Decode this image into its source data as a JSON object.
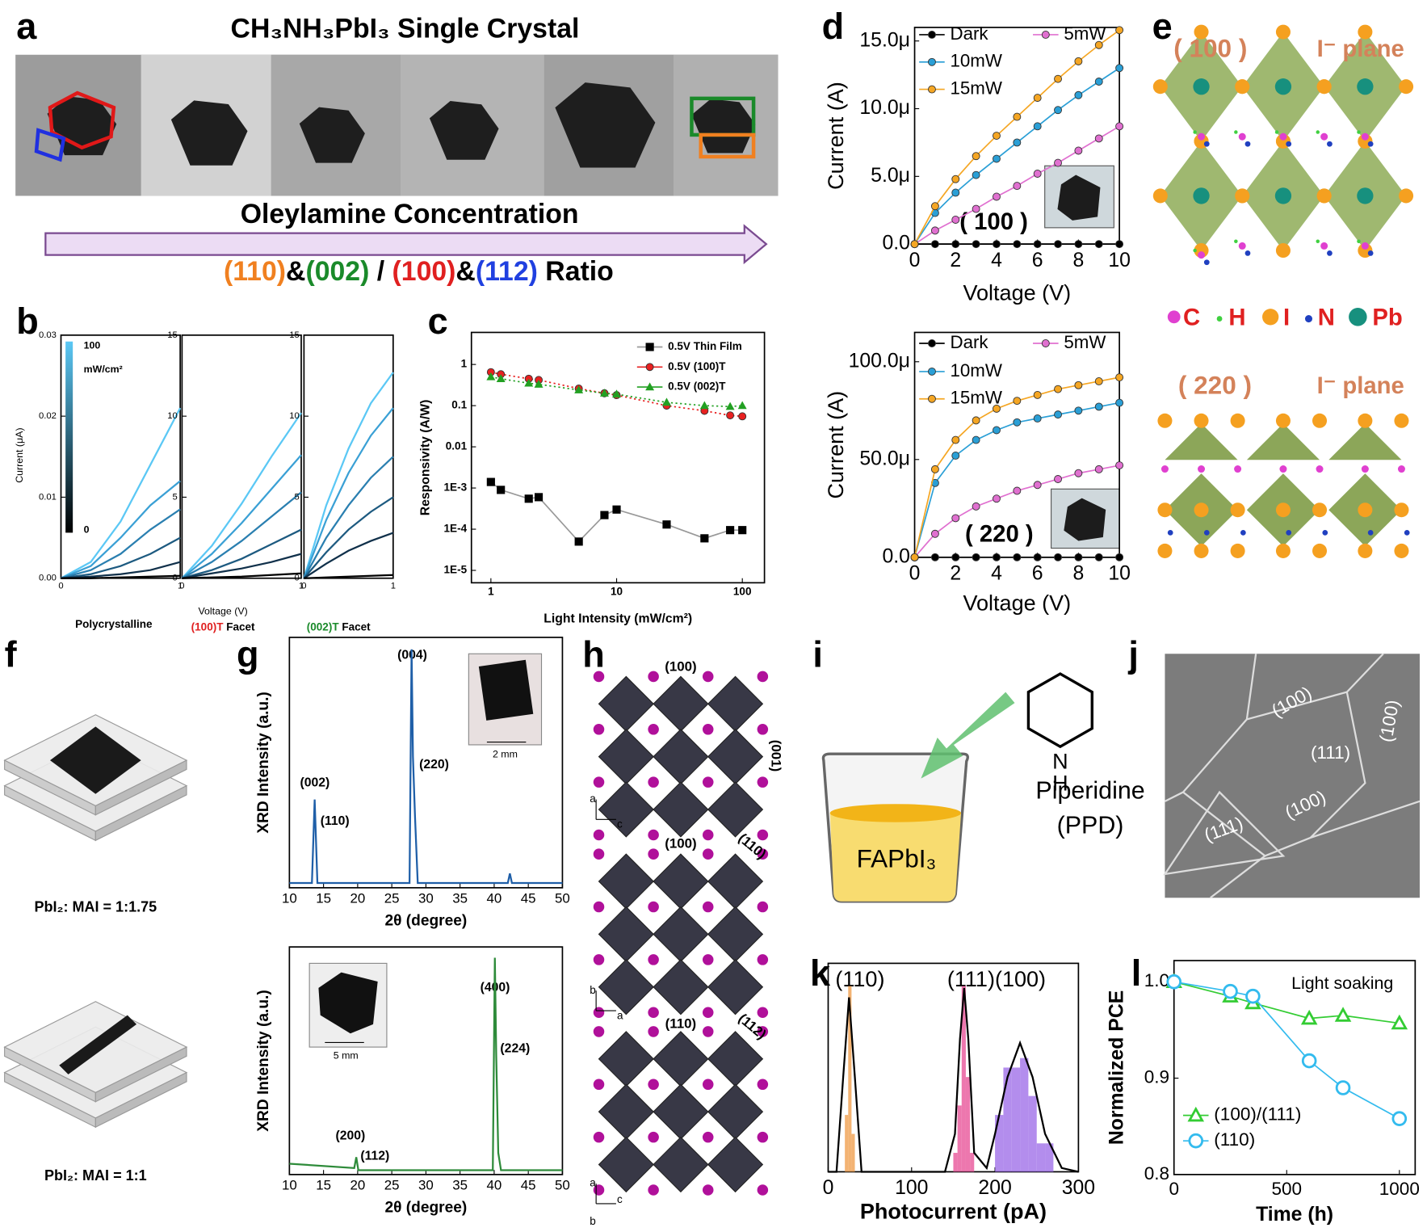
{
  "panel_labels": [
    "a",
    "b",
    "c",
    "d",
    "e",
    "f",
    "g",
    "h",
    "i",
    "j",
    "k",
    "l"
  ],
  "a": {
    "title": "CH₃NH₃PbI₃ Single Crystal",
    "axis": "Oleylamine Concentration",
    "ratio": [
      "(110)",
      "&",
      "(002)",
      " / ",
      "(100)",
      "&",
      "(112)",
      " Ratio"
    ]
  },
  "b": {
    "ylabel": "Current (μA)",
    "xlabel": "Voltage (V)",
    "poly": "Polycrystalline",
    "facets": [
      {
        "name": "(100)T",
        "word": " Facet"
      },
      {
        "name": "(002)T",
        "word": " Facet"
      }
    ],
    "colorbar": {
      "max": 100,
      "unit": "mW/cm²",
      "min": 0
    }
  },
  "d": {
    "facets": [
      "( 100 )",
      "( 220 )"
    ]
  },
  "e": {
    "facets": [
      "( 100 )",
      "( 220 )"
    ],
    "plane": "I⁻ plane",
    "legend": [
      "C",
      "H",
      "I",
      "N",
      "Pb"
    ]
  },
  "f": {
    "ratios": [
      "PbI₂: MAI = 1:1.75",
      "PbI₂: MAI = 1:1"
    ]
  },
  "g": {
    "peaks_top": [
      "(002)",
      "(110)",
      "(004)",
      "(220)"
    ],
    "peaks_bottom": [
      "(200)",
      "(112)",
      "(400)",
      "(224)"
    ],
    "scale_bars": [
      "2 mm",
      "5 mm"
    ]
  },
  "h": {
    "labels": [
      "(100)",
      "(001)",
      "(100)",
      "(110)",
      "(110)",
      "(112)"
    ],
    "axes": [
      [
        "a",
        "c"
      ],
      [
        "b",
        "a"
      ],
      [
        "a",
        "b",
        "c"
      ]
    ]
  },
  "i": {
    "solution": "FAPbI₃",
    "amine": "Piperidine",
    "abbr": "(PPD)",
    "atom": "N",
    "hydrogen": "H"
  },
  "j": {
    "facets": [
      "(100)",
      "(100)",
      "(111)",
      "(100)",
      "(111)"
    ]
  },
  "k": {
    "peaks": [
      "(110)",
      "(111)(100)"
    ]
  },
  "l": {
    "note": "Light soaking"
  },
  "charts": {
    "b1": {
      "type": "line",
      "xlim": [
        0,
        1
      ],
      "ylim": [
        0,
        0.03
      ],
      "xticks": [
        0,
        1
      ],
      "yticks": [
        {
          "value": 0,
          "label": "0.00"
        },
        0.01,
        0.02,
        0.03
      ],
      "x": [
        0,
        0.25,
        0.5,
        0.75,
        1
      ],
      "series": [
        {
          "color": "#5bc8f5",
          "values": [
            0,
            0.002,
            0.007,
            0.014,
            0.021
          ]
        },
        {
          "color": "#3aa0d5",
          "values": [
            0,
            0.0015,
            0.005,
            0.009,
            0.012
          ]
        },
        {
          "color": "#2a7fb0",
          "values": [
            0,
            0.001,
            0.003,
            0.006,
            0.0085
          ]
        },
        {
          "color": "#1d5a80",
          "values": [
            0,
            0.0005,
            0.0015,
            0.003,
            0.005
          ]
        },
        {
          "color": "#10304a",
          "values": [
            0,
            0.0002,
            0.0005,
            0.001,
            0.002
          ]
        },
        {
          "color": "#000000",
          "values": [
            0,
            0,
            0.0001,
            0.0002,
            0.0003
          ]
        }
      ]
    },
    "b2": {
      "type": "line",
      "xlim": [
        0,
        1
      ],
      "ylim": [
        0,
        15
      ],
      "xticks": [
        0,
        1
      ],
      "yticks": [
        0,
        5,
        10,
        15
      ],
      "x": [
        0,
        0.25,
        0.5,
        0.75,
        1
      ],
      "series": [
        {
          "color": "#5bc8f5",
          "values": [
            0,
            2,
            4.6,
            7.5,
            10.2
          ]
        },
        {
          "color": "#3aa0d5",
          "values": [
            0,
            1.5,
            3.4,
            5.5,
            7.6
          ]
        },
        {
          "color": "#2a7fb0",
          "values": [
            0,
            1,
            2.3,
            3.8,
            5.3
          ]
        },
        {
          "color": "#1d5a80",
          "values": [
            0,
            0.5,
            1.2,
            2.1,
            3
          ]
        },
        {
          "color": "#10304a",
          "values": [
            0,
            0.3,
            0.6,
            1,
            1.5
          ]
        },
        {
          "color": "#000000",
          "values": [
            0,
            0.05,
            0.1,
            0.2,
            0.3
          ]
        }
      ]
    },
    "b3": {
      "type": "line",
      "xlim": [
        0,
        1
      ],
      "ylim": [
        0,
        15
      ],
      "xticks": [
        0,
        1
      ],
      "yticks": [
        0,
        5,
        10,
        15
      ],
      "x": [
        0,
        0.25,
        0.5,
        0.75,
        1
      ],
      "series": [
        {
          "color": "#5bc8f5",
          "values": [
            0,
            4.5,
            8,
            10.8,
            12.7
          ]
        },
        {
          "color": "#3aa0d5",
          "values": [
            0,
            3.6,
            6.5,
            8.8,
            10.5
          ]
        },
        {
          "color": "#2a7fb0",
          "values": [
            0,
            2.5,
            4.5,
            6.2,
            7.5
          ]
        },
        {
          "color": "#1d5a80",
          "values": [
            0,
            1.6,
            3,
            4.1,
            5
          ]
        },
        {
          "color": "#10304a",
          "values": [
            0,
            0.9,
            1.7,
            2.3,
            2.8
          ]
        },
        {
          "color": "#000000",
          "values": [
            0,
            0.05,
            0.1,
            0.15,
            0.2
          ]
        }
      ]
    },
    "c": {
      "type": "scatter",
      "xlabel": "Light Intensity (mW/cm²)",
      "ylabel": "Responsivity (A/W)",
      "log_x": true,
      "log_y": true,
      "xlim": [
        0.7,
        150
      ],
      "ylim": [
        5e-06,
        6
      ],
      "xticks": [
        1,
        10,
        100
      ],
      "yticks": [
        {
          "value": 1e-05,
          "label": "1E-5"
        },
        {
          "value": 0.0001,
          "label": "1E-4"
        },
        {
          "value": 0.001,
          "label": "1E-3"
        },
        0.01,
        0.1,
        1
      ],
      "x": [
        1,
        1.2,
        2,
        2.4,
        5,
        8,
        10,
        25,
        50,
        80,
        100
      ],
      "series": [
        {
          "name": "0.5V Thin Film",
          "color": "#000000",
          "line_color": "#999999",
          "line_style": "solid",
          "marker": "square",
          "values": [
            0.0014,
            0.0009,
            0.00055,
            0.0006,
            5e-05,
            0.00022,
            0.0003,
            0.00013,
            6e-05,
            9.5e-05,
            9.5e-05
          ]
        },
        {
          "name": "0.5V (100)T",
          "color": "#e82020",
          "line_style": "dotted",
          "marker": "circle",
          "values": [
            0.65,
            0.58,
            0.45,
            0.42,
            0.26,
            0.2,
            0.18,
            0.1,
            0.075,
            0.058,
            0.055
          ]
        },
        {
          "name": "0.5V (002)T",
          "color": "#22a022",
          "line_style": "dotted",
          "marker": "triangle",
          "values": [
            0.5,
            0.45,
            0.35,
            0.33,
            0.24,
            0.2,
            0.19,
            0.12,
            0.1,
            0.095,
            0.1
          ]
        }
      ]
    },
    "d1": {
      "type": "line",
      "xlabel": "Voltage (V)",
      "ylabel": "Current (A)",
      "xlim": [
        0,
        10
      ],
      "ylim": [
        0,
        1.6e-05
      ],
      "xticks": [
        0,
        2,
        4,
        6,
        8,
        10
      ],
      "yticks": [
        {
          "value": 0,
          "label": "0.0"
        },
        {
          "value": 5e-06,
          "label": "5.0μ"
        },
        {
          "value": 1e-05,
          "label": "10.0μ"
        },
        {
          "value": 1.5e-05,
          "label": "15.0μ"
        }
      ],
      "x": [
        0,
        1,
        2,
        3,
        4,
        5,
        6,
        7,
        8,
        9,
        10
      ],
      "series": [
        {
          "name": "Dark",
          "color": "#000000",
          "marker": "circle",
          "values": [
            0,
            0,
            0,
            0,
            0,
            0,
            0,
            0,
            0,
            0,
            0
          ]
        },
        {
          "name": "5mW",
          "color": "#e070d0",
          "marker": "circle",
          "values": [
            0,
            1e-06,
            1.8e-06,
            2.6e-06,
            3.5e-06,
            4.3e-06,
            5.2e-06,
            6e-06,
            6.9e-06,
            7.8e-06,
            8.7e-06
          ]
        },
        {
          "name": "10mW",
          "color": "#2a9fd6",
          "marker": "circle",
          "values": [
            0,
            2.3e-06,
            3.8e-06,
            5.1e-06,
            6.3e-06,
            7.5e-06,
            8.7e-06,
            9.9e-06,
            1.1e-05,
            1.2e-05,
            1.3e-05
          ]
        },
        {
          "name": "15mW",
          "color": "#f5a623",
          "marker": "circle",
          "values": [
            0,
            2.8e-06,
            4.8e-06,
            6.5e-06,
            8e-06,
            9.4e-06,
            1.08e-05,
            1.22e-05,
            1.35e-05,
            1.47e-05,
            1.58e-05
          ]
        }
      ]
    },
    "d2": {
      "type": "line",
      "xlabel": "Voltage (V)",
      "ylabel": "Current (A)",
      "xlim": [
        0,
        10
      ],
      "ylim": [
        0,
        0.000115
      ],
      "xticks": [
        0,
        2,
        4,
        6,
        8,
        10
      ],
      "yticks": [
        {
          "value": 0,
          "label": "0.0"
        },
        {
          "value": 5e-05,
          "label": "50.0μ"
        },
        {
          "value": 0.0001,
          "label": "100.0μ"
        }
      ],
      "x": [
        0,
        1,
        2,
        3,
        4,
        5,
        6,
        7,
        8,
        9,
        10
      ],
      "series": [
        {
          "name": "Dark",
          "color": "#000000",
          "marker": "circle",
          "values": [
            0,
            0,
            0,
            0,
            0,
            0,
            0,
            0,
            0,
            0,
            0
          ]
        },
        {
          "name": "5mW",
          "color": "#e070d0",
          "marker": "circle",
          "values": [
            0,
            1.2e-05,
            2e-05,
            2.6e-05,
            3e-05,
            3.4e-05,
            3.7e-05,
            4e-05,
            4.3e-05,
            4.5e-05,
            4.7e-05
          ]
        },
        {
          "name": "10mW",
          "color": "#2a9fd6",
          "marker": "circle",
          "values": [
            0,
            3.8e-05,
            5.2e-05,
            6e-05,
            6.5e-05,
            6.9e-05,
            7.1e-05,
            7.3e-05,
            7.5e-05,
            7.7e-05,
            7.9e-05
          ]
        },
        {
          "name": "15mW",
          "color": "#f5a623",
          "marker": "circle",
          "values": [
            0,
            4.5e-05,
            6e-05,
            7e-05,
            7.6e-05,
            8e-05,
            8.3e-05,
            8.6e-05,
            8.8e-05,
            9e-05,
            9.2e-05
          ]
        }
      ]
    },
    "g1": {
      "type": "line",
      "xlabel": "2θ (degree)",
      "ylabel": "XRD Intensity (a.u.)",
      "xlim": [
        10,
        50
      ],
      "ylim": [
        0,
        1.05
      ],
      "xticks": [
        10,
        15,
        20,
        25,
        30,
        35,
        40,
        45,
        50
      ],
      "series": [
        {
          "color": "#1f5fa8",
          "x": [
            10,
            13.3,
            13.7,
            14.1,
            27.6,
            27.9,
            28.1,
            28.4,
            28.8,
            42,
            42.3,
            42.6,
            50
          ],
          "values": [
            0.02,
            0.02,
            0.37,
            0.02,
            0.02,
            1,
            0.55,
            0.3,
            0.02,
            0.02,
            0.06,
            0.02,
            0.02
          ]
        }
      ]
    },
    "g2": {
      "type": "line",
      "xlabel": "2θ (degree)",
      "ylabel": "XRD Intensity (a.u.)",
      "xlim": [
        10,
        50
      ],
      "ylim": [
        0,
        1.05
      ],
      "xticks": [
        10,
        15,
        20,
        25,
        30,
        35,
        40,
        45,
        50
      ],
      "series": [
        {
          "color": "#2e8b3a",
          "x": [
            10,
            19.5,
            19.8,
            20.1,
            39.8,
            40.1,
            40.3,
            40.6,
            41,
            50
          ],
          "values": [
            0.05,
            0.03,
            0.08,
            0.02,
            0.02,
            1,
            0.55,
            0.1,
            0.02,
            0.02
          ]
        }
      ]
    },
    "k": {
      "type": "histogram",
      "xlabel": "Photocurrent (pA)",
      "xlim": [
        0,
        300
      ],
      "ylim": [
        0,
        1.1
      ],
      "xticks": [
        0,
        100,
        200,
        300
      ],
      "histograms": [
        {
          "color": "#f0a050",
          "bins": [
            20,
            24,
            28,
            32
          ],
          "counts": [
            0.3,
            0.98,
            0.2
          ]
        },
        {
          "color": "#e8559a",
          "bins": [
            150,
            155,
            160,
            165,
            170,
            175
          ],
          "counts": [
            0.1,
            0.35,
            0.98,
            0.5,
            0.1
          ]
        },
        {
          "color": "#a070e8",
          "bins": [
            200,
            210,
            220,
            230,
            240,
            250,
            260,
            270
          ],
          "counts": [
            0.3,
            0.55,
            0.55,
            0.6,
            0.4,
            0.15,
            0.15
          ]
        }
      ],
      "series": [
        {
          "color": "#000000",
          "x": [
            0,
            10,
            18,
            25,
            32,
            40,
            140,
            152,
            158,
            163,
            168,
            175,
            190,
            200,
            215,
            230,
            245,
            260,
            280,
            300
          ],
          "values": [
            0,
            0,
            0.5,
            0.92,
            0.5,
            0,
            0,
            0.2,
            0.7,
            0.97,
            0.7,
            0.1,
            0.02,
            0.2,
            0.5,
            0.68,
            0.5,
            0.2,
            0.02,
            0
          ]
        }
      ]
    },
    "l": {
      "type": "line",
      "xlabel": "Time (h)",
      "ylabel": "Normalized PCE",
      "xlim": [
        0,
        1070
      ],
      "ylim": [
        0.8,
        1.022
      ],
      "xticks": [
        0,
        500,
        1000
      ],
      "yticks": [
        0.8,
        0.9,
        {
          "value": 1,
          "label": "1.0"
        }
      ],
      "series": [
        {
          "name": "(100)/(111)",
          "color": "#33cc33",
          "marker": "open-triangle",
          "x": [
            0,
            250,
            350,
            600,
            750,
            1000
          ],
          "values": [
            1,
            0.985,
            0.978,
            0.962,
            0.965,
            0.957
          ]
        },
        {
          "name": "(110)",
          "color": "#33bbee",
          "marker": "open-circle",
          "x": [
            0,
            250,
            350,
            600,
            750,
            1000
          ],
          "values": [
            1,
            0.99,
            0.985,
            0.918,
            0.89,
            0.858
          ]
        }
      ]
    }
  }
}
